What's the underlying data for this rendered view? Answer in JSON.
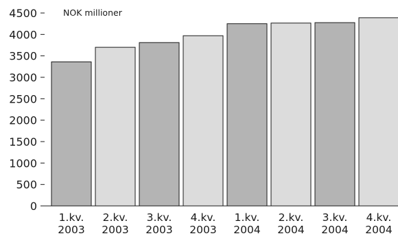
{
  "chart_data": {
    "type": "bar",
    "unit_label": "NOK millioner",
    "categories": [
      [
        "1.kv.",
        "2003"
      ],
      [
        "2.kv.",
        "2003"
      ],
      [
        "3.kv.",
        "2003"
      ],
      [
        "4.kv.",
        "2003"
      ],
      [
        "1.kv.",
        "2004"
      ],
      [
        "2.kv.",
        "2004"
      ],
      [
        "3.kv.",
        "2004"
      ],
      [
        "4.kv.",
        "2004"
      ]
    ],
    "values": [
      3360,
      3700,
      3810,
      3970,
      4250,
      4265,
      4275,
      4390
    ],
    "ylim": [
      0,
      4500
    ],
    "yticks": [
      0,
      500,
      1000,
      1500,
      2000,
      2500,
      3000,
      3500,
      4000,
      4500
    ],
    "grid": false,
    "colors": {
      "bar_alternate": [
        "#b4b4b4",
        "#dcdcdc"
      ],
      "bar_stroke": "#1a1a1a",
      "axis": "#1a1a1a"
    }
  }
}
